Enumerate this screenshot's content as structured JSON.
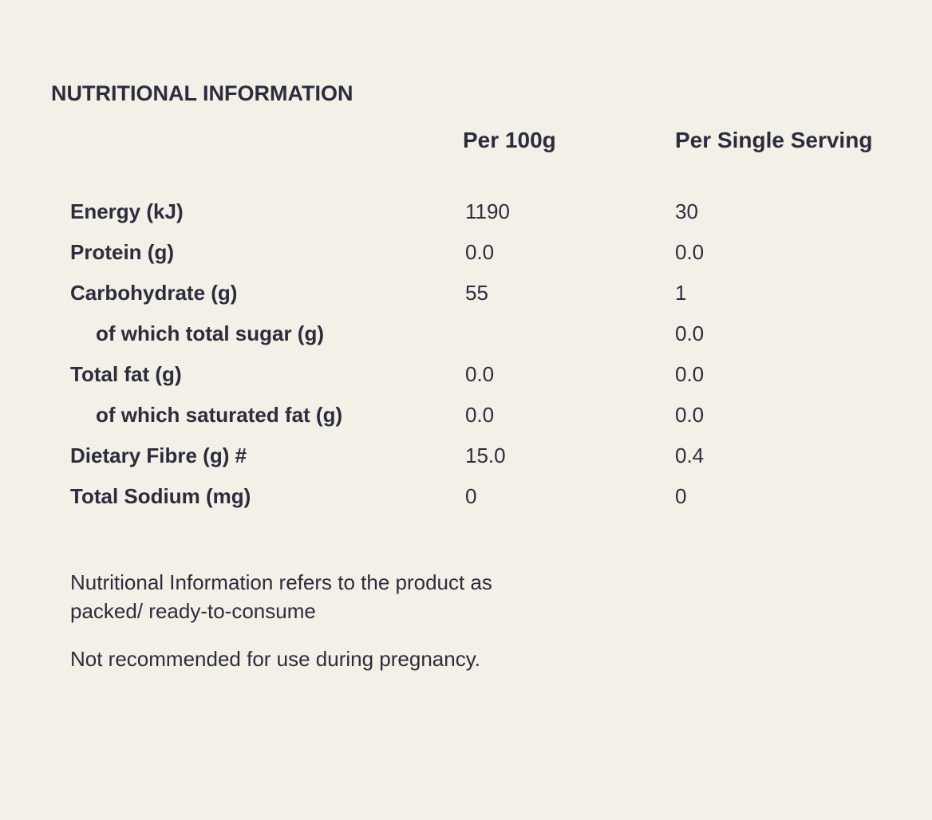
{
  "title": "NUTRITIONAL INFORMATION",
  "table": {
    "header": [
      "Per 100g",
      "Per Single Serving"
    ],
    "rows": [
      [
        "Energy (kJ)",
        "1190",
        "30"
      ],
      [
        "Protein (g)",
        "0.0",
        "0.0"
      ],
      [
        "Carbohydrate (g)",
        "55",
        "1"
      ],
      [
        "of which total sugar (g)",
        null,
        "0.0"
      ],
      [
        "Total fat (g)",
        "0.0",
        "0.0"
      ],
      [
        "of which saturated fat (g)",
        "0.0",
        "0.0"
      ],
      [
        "Dietary Fibre (g) #",
        "15.0",
        "0.4"
      ],
      [
        "Total Sodium (mg)",
        "0",
        "0"
      ]
    ]
  },
  "notes": [
    "Nutritional Information refers to the product as packed/ ready-to-consume",
    "Not recommended for use during pregnancy."
  ]
}
